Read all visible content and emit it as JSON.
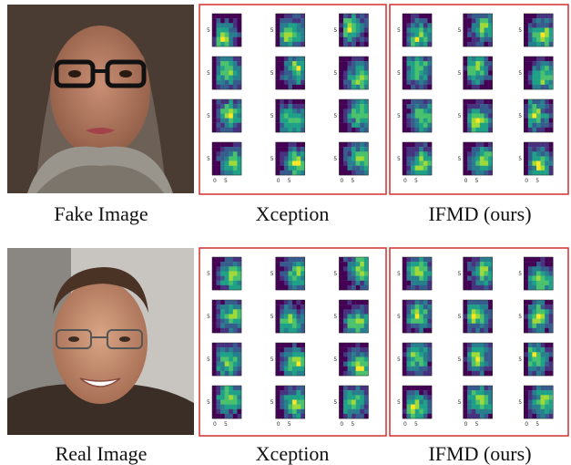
{
  "rows": [
    {
      "image_caption": "Fake Image",
      "panels": [
        "Xception",
        "IFMD (ours)"
      ]
    },
    {
      "image_caption": "Real Image",
      "panels": [
        "Xception",
        "IFMD (ours)"
      ]
    }
  ],
  "heatmap_ticks": [
    "0",
    "5"
  ]
}
